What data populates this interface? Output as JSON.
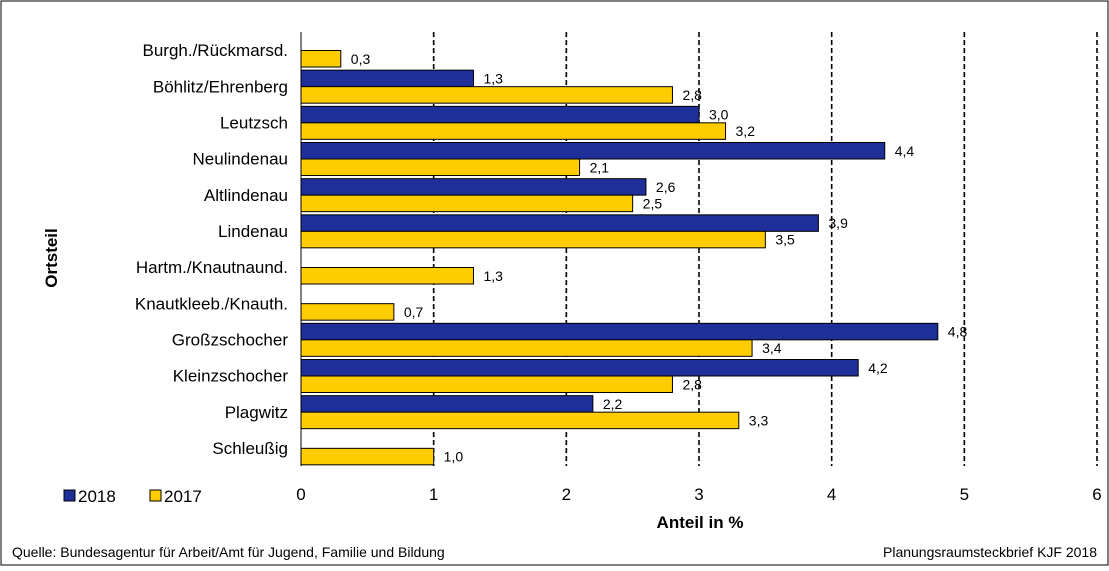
{
  "chart_data": {
    "type": "bar",
    "orientation": "horizontal",
    "xlabel": "Anteil in %",
    "ylabel": "Ortsteil",
    "xlim": [
      0,
      6
    ],
    "xticks": [
      "0",
      "1",
      "2",
      "3",
      "4",
      "5",
      "6"
    ],
    "grid": "vertical dashed",
    "legend_placement": "bottom-left",
    "categories": [
      "Burgh./Rückmarsd.",
      "Böhlitz/Ehrenberg",
      "Leutzsch",
      "Neulindenau",
      "Altlindenau",
      "Lindenau",
      "Hartm./Knautnaund.",
      "Knautkleeb./Knauth.",
      "Großzschocher",
      "Kleinzschocher",
      "Plagwitz",
      "Schleußig"
    ],
    "series": [
      {
        "name": "2018",
        "color": "#1f2f9a",
        "values": [
          null,
          1.3,
          3.0,
          4.4,
          2.6,
          3.9,
          null,
          null,
          4.8,
          4.2,
          2.2,
          null
        ],
        "labels": [
          "",
          "1,3",
          "3,0",
          "4,4",
          "2,6",
          "3,9",
          "",
          "",
          "4,8",
          "4,2",
          "2,2",
          ""
        ]
      },
      {
        "name": "2017",
        "color": "#ffcc00",
        "values": [
          0.3,
          2.8,
          3.2,
          2.1,
          2.5,
          3.5,
          1.3,
          0.7,
          3.4,
          2.8,
          3.3,
          1.0
        ],
        "labels": [
          "0,3",
          "2,8",
          "3,2",
          "2,1",
          "2,5",
          "3,5",
          "1,3",
          "0,7",
          "3,4",
          "2,8",
          "3,3",
          "1,0"
        ]
      }
    ]
  },
  "footer": {
    "source": "Quelle: Bundesagentur für Arbeit/Amt für Jugend, Familie und Bildung",
    "credit": "Planungsraumsteckbrief KJF 2018"
  }
}
